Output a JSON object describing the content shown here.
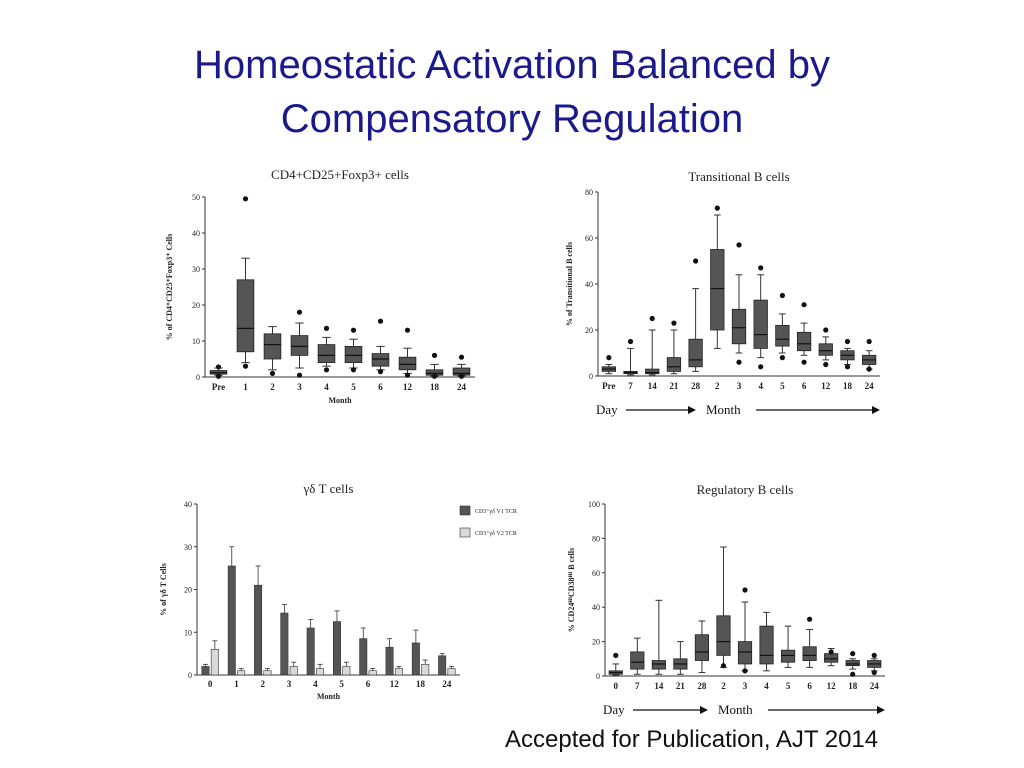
{
  "slide": {
    "title_line1": "Homeostatic Activation Balanced by",
    "title_line2": "Compensatory Regulation",
    "caption": "Accepted for Publication, AJT 2014"
  },
  "colors": {
    "title": "#1a1a8c",
    "box": "#555555",
    "bar_v1": "#555555",
    "bar_v2": "#d9d9d9"
  },
  "chart_data": [
    {
      "type": "box",
      "title": "CD4+CD25+Foxp3+ cells",
      "ylabel": "% of CD4⁺CD25⁺Foxp3⁺ Cells",
      "xlabel": "Month",
      "ylim": [
        0,
        50
      ],
      "yticks": [
        0,
        10,
        20,
        30,
        40,
        50
      ],
      "categories": [
        "Pre",
        "1",
        "2",
        "3",
        "4",
        "5",
        "6",
        "12",
        "18",
        "24"
      ],
      "boxes": [
        {
          "low": 0.5,
          "q1": 0.8,
          "median": 1.2,
          "q3": 1.8,
          "high": 2.5,
          "outliers": [
            2.8,
            0.2
          ]
        },
        {
          "low": 4,
          "q1": 7,
          "median": 13.5,
          "q3": 27,
          "high": 33,
          "outliers": [
            49.5,
            3
          ]
        },
        {
          "low": 2,
          "q1": 5,
          "median": 9,
          "q3": 12,
          "high": 14,
          "outliers": [
            1
          ]
        },
        {
          "low": 2.5,
          "q1": 6,
          "median": 8.5,
          "q3": 11.5,
          "high": 15,
          "outliers": [
            18,
            0.5
          ]
        },
        {
          "low": 3,
          "q1": 4,
          "median": 6,
          "q3": 9,
          "high": 11,
          "outliers": [
            13.5,
            2
          ]
        },
        {
          "low": 2.5,
          "q1": 4,
          "median": 6,
          "q3": 8.5,
          "high": 10.5,
          "outliers": [
            13,
            2
          ]
        },
        {
          "low": 2,
          "q1": 3,
          "median": 5,
          "q3": 6.5,
          "high": 8.5,
          "outliers": [
            15.5,
            1.5
          ]
        },
        {
          "low": 1,
          "q1": 2,
          "median": 3.5,
          "q3": 5.5,
          "high": 8,
          "outliers": [
            13,
            0.5
          ]
        },
        {
          "low": 0.3,
          "q1": 0.5,
          "median": 1,
          "q3": 2,
          "high": 3.5,
          "outliers": [
            6,
            0.2
          ]
        },
        {
          "low": 0.3,
          "q1": 0.5,
          "median": 1,
          "q3": 2.5,
          "high": 3.5,
          "outliers": [
            5.5,
            0.2
          ]
        }
      ]
    },
    {
      "type": "box",
      "title": "Transitional B cells",
      "ylabel": "% of Transitional B cells",
      "xlabel": "",
      "ylim": [
        0,
        80
      ],
      "yticks": [
        0,
        20,
        40,
        60,
        80
      ],
      "categories": [
        "Pre",
        "7",
        "14",
        "21",
        "28",
        "2",
        "3",
        "4",
        "5",
        "6",
        "12",
        "18",
        "24"
      ],
      "day_label": "Day",
      "month_label": "Month",
      "boxes": [
        {
          "low": 1,
          "q1": 2,
          "median": 3,
          "q3": 4,
          "high": 5,
          "outliers": [
            8
          ]
        },
        {
          "low": 0.5,
          "q1": 1,
          "median": 1.5,
          "q3": 2,
          "high": 12,
          "outliers": [
            15
          ]
        },
        {
          "low": 0.5,
          "q1": 1,
          "median": 1.5,
          "q3": 3,
          "high": 20,
          "outliers": [
            25
          ]
        },
        {
          "low": 1,
          "q1": 2,
          "median": 4,
          "q3": 8,
          "high": 20,
          "outliers": [
            23
          ]
        },
        {
          "low": 2,
          "q1": 4,
          "median": 7,
          "q3": 16,
          "high": 38,
          "outliers": [
            50
          ]
        },
        {
          "low": 12,
          "q1": 20,
          "median": 38,
          "q3": 55,
          "high": 70,
          "outliers": [
            73
          ]
        },
        {
          "low": 10,
          "q1": 14,
          "median": 21,
          "q3": 29,
          "high": 44,
          "outliers": [
            57,
            6
          ]
        },
        {
          "low": 8,
          "q1": 12,
          "median": 18,
          "q3": 33,
          "high": 44,
          "outliers": [
            47,
            4
          ]
        },
        {
          "low": 10,
          "q1": 13,
          "median": 16,
          "q3": 22,
          "high": 27,
          "outliers": [
            35,
            8
          ]
        },
        {
          "low": 9,
          "q1": 11,
          "median": 14,
          "q3": 19,
          "high": 23,
          "outliers": [
            31,
            6
          ]
        },
        {
          "low": 7,
          "q1": 9,
          "median": 11,
          "q3": 14,
          "high": 17,
          "outliers": [
            20,
            5
          ]
        },
        {
          "low": 5,
          "q1": 7,
          "median": 9,
          "q3": 11,
          "high": 12,
          "outliers": [
            15,
            4
          ]
        },
        {
          "low": 3,
          "q1": 5,
          "median": 7,
          "q3": 9,
          "high": 11,
          "outliers": [
            15,
            3
          ]
        }
      ]
    },
    {
      "type": "bar",
      "title": "γδ T cells",
      "ylabel": "% of γδ T Cells",
      "xlabel": "Month",
      "ylim": [
        0,
        40
      ],
      "yticks": [
        0,
        10,
        20,
        30,
        40
      ],
      "categories": [
        "0",
        "1",
        "2",
        "3",
        "4",
        "5",
        "6",
        "12",
        "18",
        "24"
      ],
      "series": [
        {
          "name": "CD3⁺γδ V1 TCR",
          "values": [
            2,
            25.5,
            21,
            14.5,
            11,
            12.5,
            8.5,
            6.5,
            7.5,
            4.5
          ],
          "errors": [
            0.5,
            4.5,
            4.5,
            2.0,
            2.0,
            2.5,
            2.5,
            2.0,
            3.0,
            0.5
          ]
        },
        {
          "name": "CD3⁺γδ V2 TCR",
          "values": [
            6,
            1,
            1,
            2,
            1.5,
            2,
            1,
            1.5,
            2.5,
            1.5
          ],
          "errors": [
            2,
            0.5,
            0.5,
            1,
            1,
            1,
            0.5,
            0.5,
            1,
            0.5
          ]
        }
      ]
    },
    {
      "type": "box",
      "title": "Regulatory B cells",
      "ylabel": "% CD24ᴴᴵCD38ᴴᴵ B cells",
      "xlabel": "",
      "ylim": [
        0,
        100
      ],
      "yticks": [
        0,
        20,
        40,
        60,
        80,
        100
      ],
      "categories": [
        "0",
        "7",
        "14",
        "21",
        "28",
        "2",
        "3",
        "4",
        "5",
        "6",
        "12",
        "18",
        "24"
      ],
      "day_label": "Day",
      "month_label": "Month",
      "boxes": [
        {
          "low": 0.5,
          "q1": 1,
          "median": 2,
          "q3": 3,
          "high": 7,
          "outliers": [
            12
          ]
        },
        {
          "low": 1,
          "q1": 4,
          "median": 8,
          "q3": 14,
          "high": 22,
          "outliers": []
        },
        {
          "low": 1,
          "q1": 4,
          "median": 7,
          "q3": 9,
          "high": 44,
          "outliers": []
        },
        {
          "low": 1,
          "q1": 4,
          "median": 7,
          "q3": 10,
          "high": 20,
          "outliers": []
        },
        {
          "low": 2,
          "q1": 9,
          "median": 14,
          "q3": 24,
          "high": 32,
          "outliers": []
        },
        {
          "low": 5,
          "q1": 12,
          "median": 20,
          "q3": 35,
          "high": 75,
          "outliers": [
            6
          ]
        },
        {
          "low": 3,
          "q1": 7,
          "median": 14,
          "q3": 20,
          "high": 43,
          "outliers": [
            50,
            3
          ]
        },
        {
          "low": 3,
          "q1": 7,
          "median": 12,
          "q3": 29,
          "high": 37,
          "outliers": []
        },
        {
          "low": 5,
          "q1": 8,
          "median": 12,
          "q3": 15,
          "high": 29,
          "outliers": []
        },
        {
          "low": 5,
          "q1": 9,
          "median": 12,
          "q3": 17,
          "high": 27,
          "outliers": [
            33
          ]
        },
        {
          "low": 6,
          "q1": 8,
          "median": 10,
          "q3": 13,
          "high": 16,
          "outliers": [
            14
          ]
        },
        {
          "low": 4,
          "q1": 6,
          "median": 7,
          "q3": 9,
          "high": 10,
          "outliers": [
            13,
            1
          ]
        },
        {
          "low": 3,
          "q1": 5,
          "median": 7,
          "q3": 9,
          "high": 10,
          "outliers": [
            12,
            2
          ]
        }
      ]
    }
  ]
}
